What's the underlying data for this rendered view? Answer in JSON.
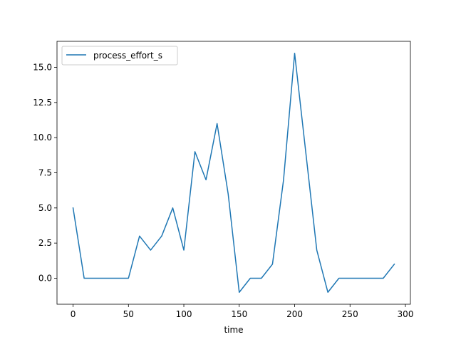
{
  "chart_data": {
    "type": "line",
    "title": "",
    "xlabel": "time",
    "ylabel": "",
    "xlim": [
      -14.5,
      304.5
    ],
    "ylim": [
      -1.85,
      16.85
    ],
    "xticks": [
      0,
      50,
      100,
      150,
      200,
      250,
      300
    ],
    "xtick_labels": [
      "0",
      "50",
      "100",
      "150",
      "200",
      "250",
      "300"
    ],
    "yticks": [
      0.0,
      2.5,
      5.0,
      7.5,
      10.0,
      12.5,
      15.0
    ],
    "ytick_labels": [
      "0.0",
      "2.5",
      "5.0",
      "7.5",
      "10.0",
      "12.5",
      "15.0"
    ],
    "grid": false,
    "legend_position": "upper-left",
    "series": [
      {
        "name": "process_effort_s",
        "color": "#1f77b4",
        "x": [
          0,
          10,
          20,
          30,
          40,
          50,
          60,
          70,
          80,
          90,
          100,
          110,
          120,
          130,
          140,
          150,
          160,
          170,
          180,
          190,
          200,
          210,
          220,
          230,
          240,
          250,
          260,
          270,
          280,
          290
        ],
        "y": [
          5,
          0,
          0,
          0,
          0,
          0,
          3,
          2,
          3,
          5,
          2,
          9,
          7,
          11,
          6,
          -1,
          0,
          0,
          1,
          7,
          16,
          9,
          2,
          -1,
          0,
          0,
          0,
          0,
          0,
          1
        ]
      }
    ]
  }
}
